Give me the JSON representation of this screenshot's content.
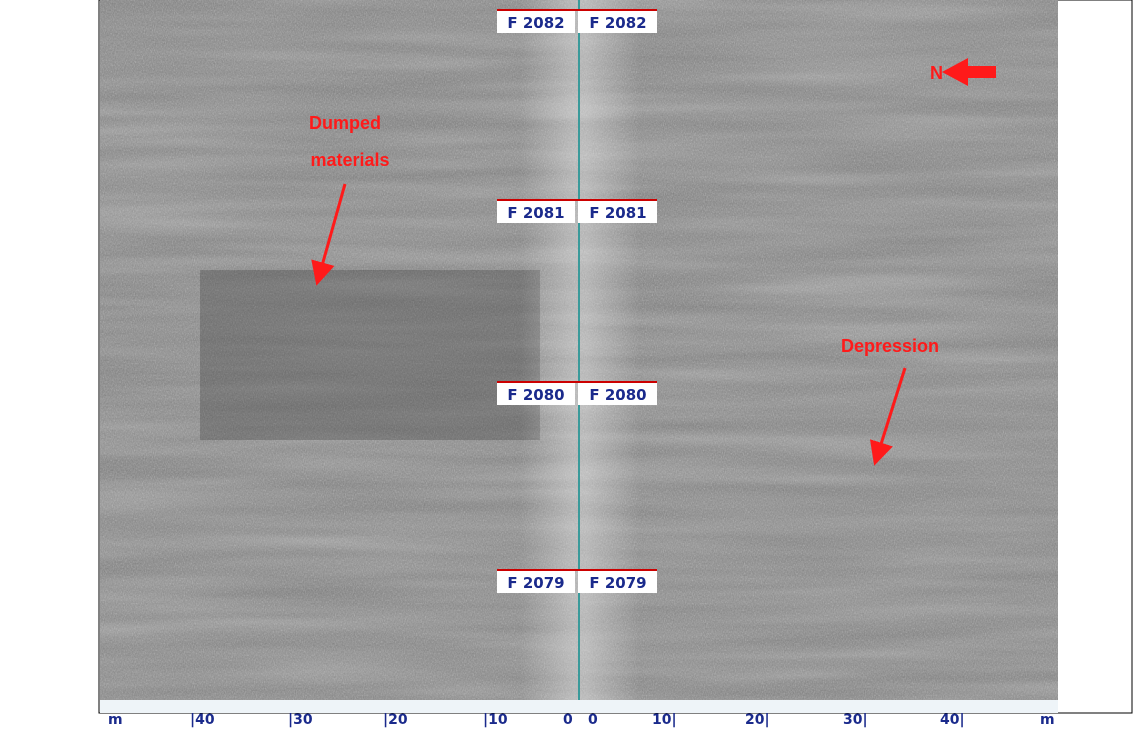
{
  "fix_marks": [
    {
      "left": "F 2082",
      "right": "F 2082"
    },
    {
      "left": "F 2081",
      "right": "F 2081"
    },
    {
      "left": "F 2080",
      "right": "F 2080"
    },
    {
      "left": "F 2079",
      "right": "F 2079"
    }
  ],
  "annotations": {
    "north": "N",
    "dumped_materials": [
      "Dumped",
      "materials"
    ],
    "depression": "Depression"
  },
  "range_scale": [
    "m",
    "|40",
    "|30",
    "|20",
    "|10",
    "0",
    "0",
    "10|",
    "20|",
    "30|",
    "40|",
    "m"
  ]
}
